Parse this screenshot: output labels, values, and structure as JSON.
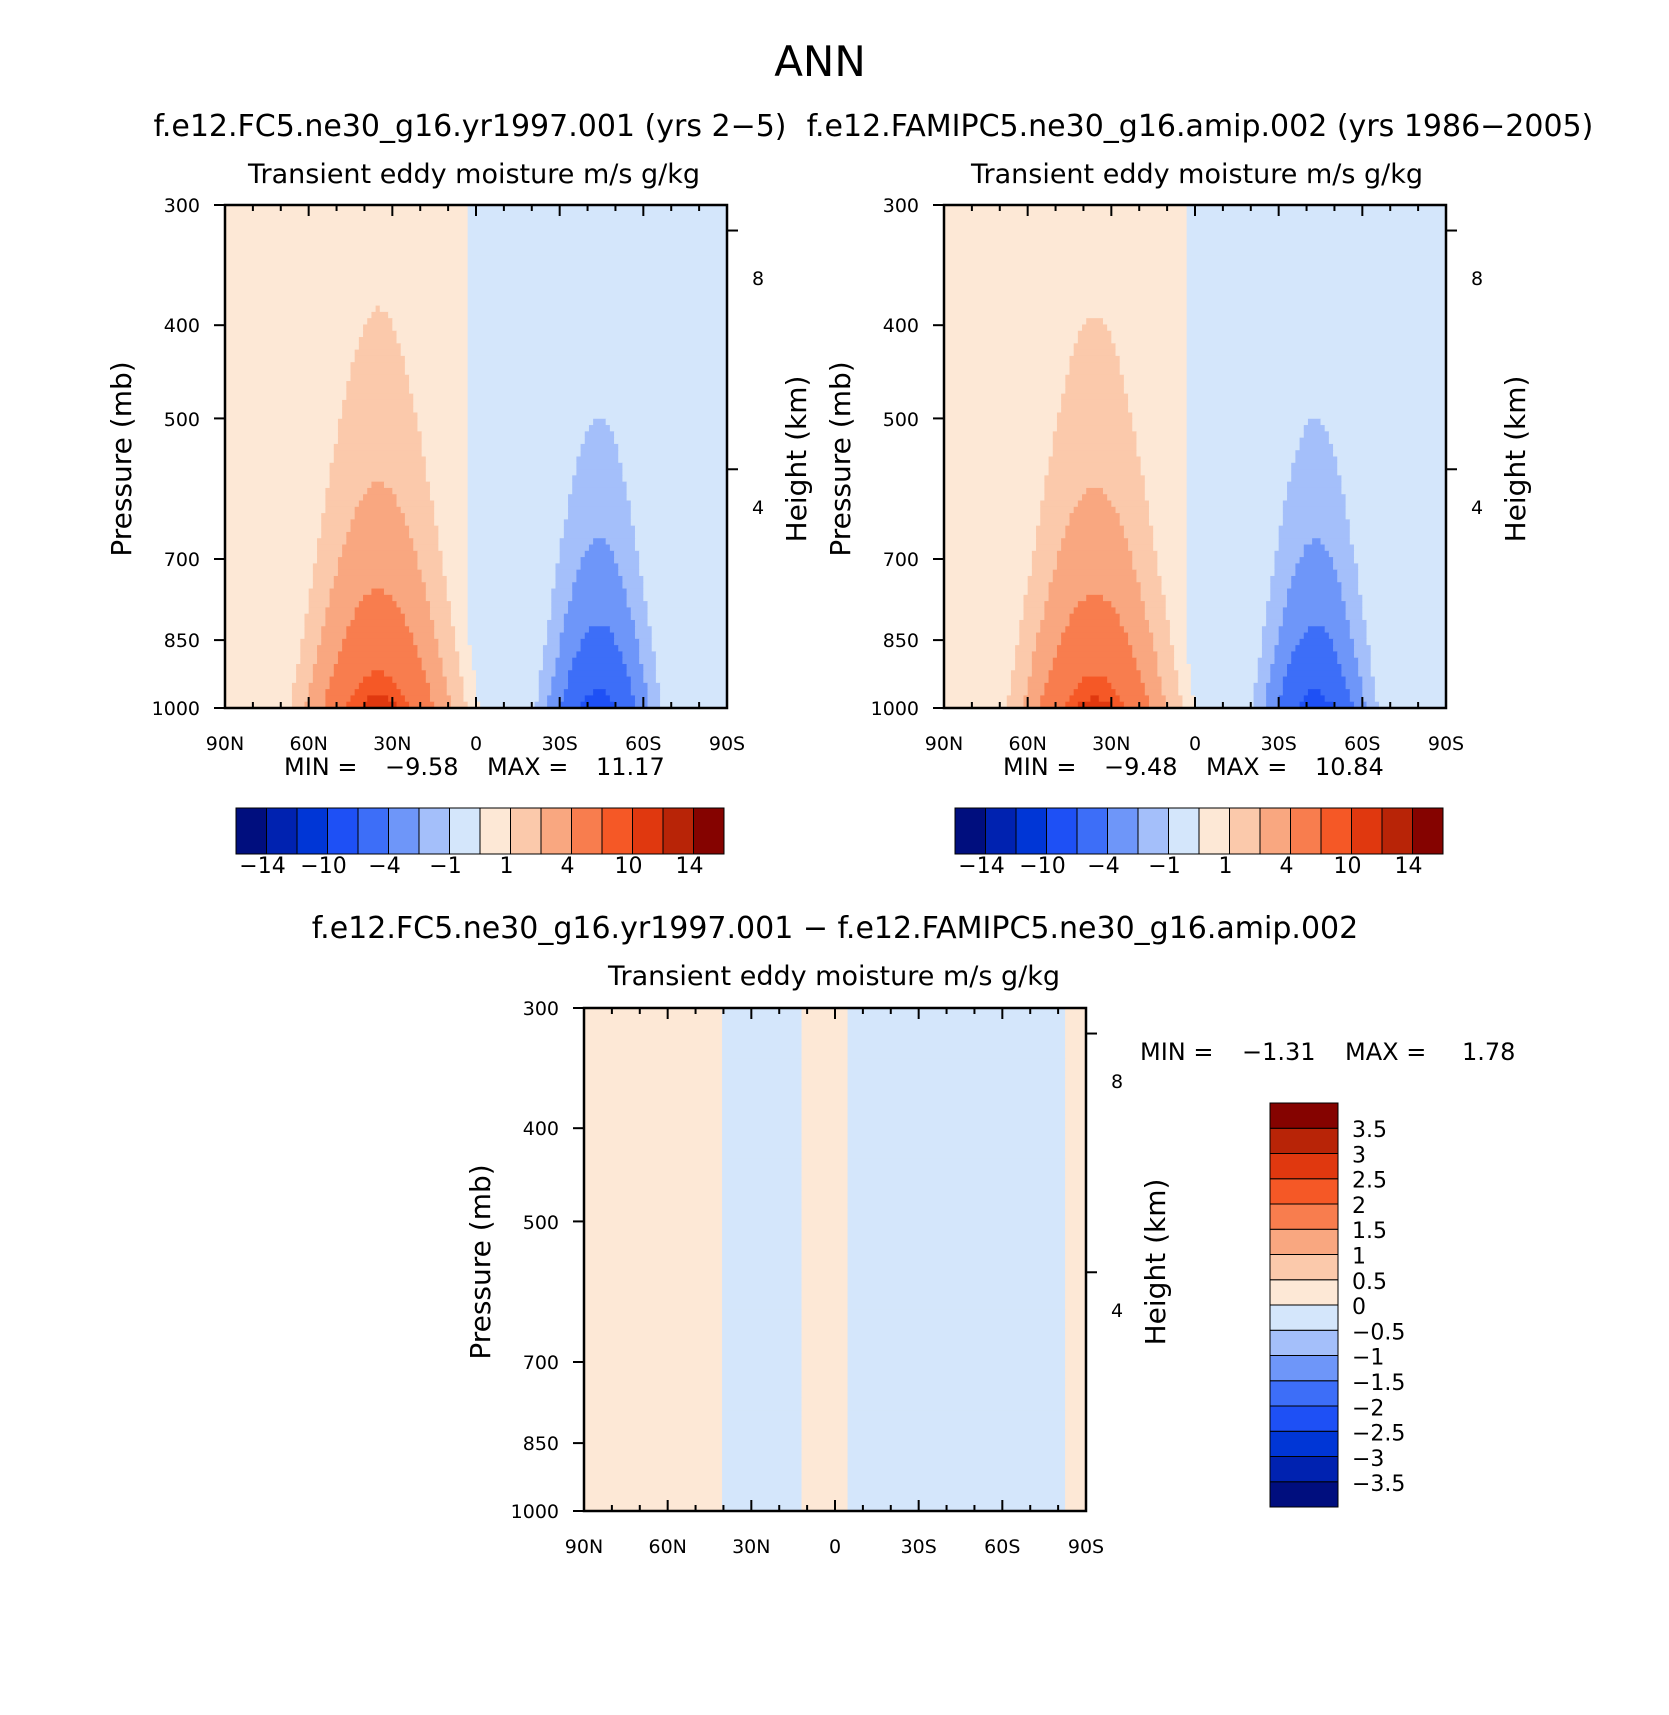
{
  "figure": {
    "title": "ANN"
  },
  "chart_data": [
    {
      "id": "panel_test",
      "type": "contour",
      "run_title": "f.e12.FC5.ne30_g16.yr1997.001 (yrs 2-5)",
      "title": "Transient eddy moisture m/s g/kg",
      "xlabel": "",
      "ylabel": "Pressure (mb)",
      "ylabel_right": "Height (km)",
      "x_tick_labels": [
        "90N",
        "60N",
        "30N",
        "0",
        "30S",
        "60S",
        "90S"
      ],
      "x_tick_values": [
        90,
        60,
        30,
        0,
        -30,
        -60,
        -90
      ],
      "y_tick_labels": [
        "300",
        "400",
        "500",
        "700",
        "850",
        "1000"
      ],
      "y_tick_values": [
        300,
        400,
        500,
        700,
        850,
        1000
      ],
      "y_right_tick_labels": [
        "8",
        "4"
      ],
      "y_right_tick_values": [
        8,
        4
      ],
      "xlim": [
        90,
        -90
      ],
      "ylim": [
        1000,
        300
      ],
      "min_label": "MIN =",
      "min_value": "-9.58",
      "max_label": "MAX =",
      "max_value": "11.17",
      "contour_levels": [
        -14,
        -12,
        -10,
        -8,
        -4,
        -2,
        -1,
        0,
        1,
        2,
        4,
        8,
        10,
        12,
        14
      ],
      "colorbar_labels": [
        "-14",
        "-10",
        "-4",
        "-1",
        "1",
        "4",
        "10",
        "14"
      ],
      "field": {
        "sources": [
          {
            "lat": 35,
            "sigma_lat": 19,
            "amp": 11.17,
            "decay": 0.0045
          },
          {
            "lat": -44,
            "sigma_lat": 14,
            "amp": -9.58,
            "decay": 0.0052
          }
        ]
      }
    },
    {
      "id": "panel_control",
      "type": "contour",
      "run_title": "f.e12.FAMIPC5.ne30_g16.amip.002 (yrs 1986-2005)",
      "title": "Transient eddy moisture m/s g/kg",
      "xlabel": "",
      "ylabel": "Pressure (mb)",
      "ylabel_right": "Height (km)",
      "x_tick_labels": [
        "90N",
        "60N",
        "30N",
        "0",
        "30S",
        "60S",
        "90S"
      ],
      "x_tick_values": [
        90,
        60,
        30,
        0,
        -30,
        -60,
        -90
      ],
      "y_tick_labels": [
        "300",
        "400",
        "500",
        "700",
        "850",
        "1000"
      ],
      "y_tick_values": [
        300,
        400,
        500,
        700,
        850,
        1000
      ],
      "y_right_tick_labels": [
        "8",
        "4"
      ],
      "y_right_tick_values": [
        8,
        4
      ],
      "xlim": [
        90,
        -90
      ],
      "ylim": [
        1000,
        300
      ],
      "min_label": "MIN =",
      "min_value": "-9.48",
      "max_label": "MAX =",
      "max_value": "10.84",
      "contour_levels": [
        -14,
        -12,
        -10,
        -8,
        -4,
        -2,
        -1,
        0,
        1,
        2,
        4,
        8,
        10,
        12,
        14
      ],
      "colorbar_labels": [
        "-14",
        "-10",
        "-4",
        "-1",
        "1",
        "4",
        "10",
        "14"
      ],
      "field": {
        "sources": [
          {
            "lat": 36,
            "sigma_lat": 19,
            "amp": 10.84,
            "decay": 0.0045
          },
          {
            "lat": -43,
            "sigma_lat": 14,
            "amp": -9.48,
            "decay": 0.0052
          }
        ]
      }
    },
    {
      "id": "panel_diff",
      "type": "contour",
      "run_title": "f.e12.FC5.ne30_g16.yr1997.001 - f.e12.FAMIPC5.ne30_g16.amip.002",
      "title": "Transient eddy moisture m/s g/kg",
      "xlabel": "",
      "ylabel": "Pressure (mb)",
      "ylabel_right": "Height (km)",
      "x_tick_labels": [
        "90N",
        "60N",
        "30N",
        "0",
        "30S",
        "60S",
        "90S"
      ],
      "x_tick_values": [
        90,
        60,
        30,
        0,
        -30,
        -60,
        -90
      ],
      "y_tick_labels": [
        "300",
        "400",
        "500",
        "700",
        "850",
        "1000"
      ],
      "y_tick_values": [
        300,
        400,
        500,
        700,
        850,
        1000
      ],
      "y_right_tick_labels": [
        "8",
        "4"
      ],
      "y_right_tick_values": [
        8,
        4
      ],
      "xlim": [
        90,
        -90
      ],
      "ylim": [
        1000,
        300
      ],
      "min_label": "MIN =",
      "min_value": "-1.31",
      "max_label": "MAX =",
      "max_value": "1.78",
      "contour_levels": [
        -3.5,
        -3,
        -2.5,
        -2,
        -1.5,
        -1,
        -0.5,
        0,
        0.5,
        1,
        1.5,
        2,
        2.5,
        3,
        3.5
      ],
      "colorbar_labels": [
        "3.5",
        "3",
        "2.5",
        "2",
        "1.5",
        "1",
        "0.5",
        "0",
        "-0.5",
        "-1",
        "-1.5",
        "-2",
        "-2.5",
        "-3",
        "-3.5"
      ],
      "field": {
        "bands": [
          {
            "lat_start": 90,
            "lat_end": 41,
            "sign": 1
          },
          {
            "lat_start": 41,
            "lat_end": 12,
            "sign": -1
          },
          {
            "lat_start": 12,
            "lat_end": -4,
            "sign": 1
          },
          {
            "lat_start": -4,
            "lat_end": -82,
            "sign": -1
          },
          {
            "lat_start": -82,
            "lat_end": -90,
            "sign": 1
          }
        ]
      }
    }
  ],
  "colors": {
    "palette_blue_to_red": [
      "#000e7e",
      "#0022b0",
      "#0036d6",
      "#1e50f5",
      "#3d6ef8",
      "#6e96f9",
      "#a4bffa",
      "#d4e6fb",
      "#fde8d6",
      "#fbc9ab",
      "#f9a780",
      "#f87d4e",
      "#f55826",
      "#e0380f",
      "#b82407",
      "#850300"
    ]
  }
}
